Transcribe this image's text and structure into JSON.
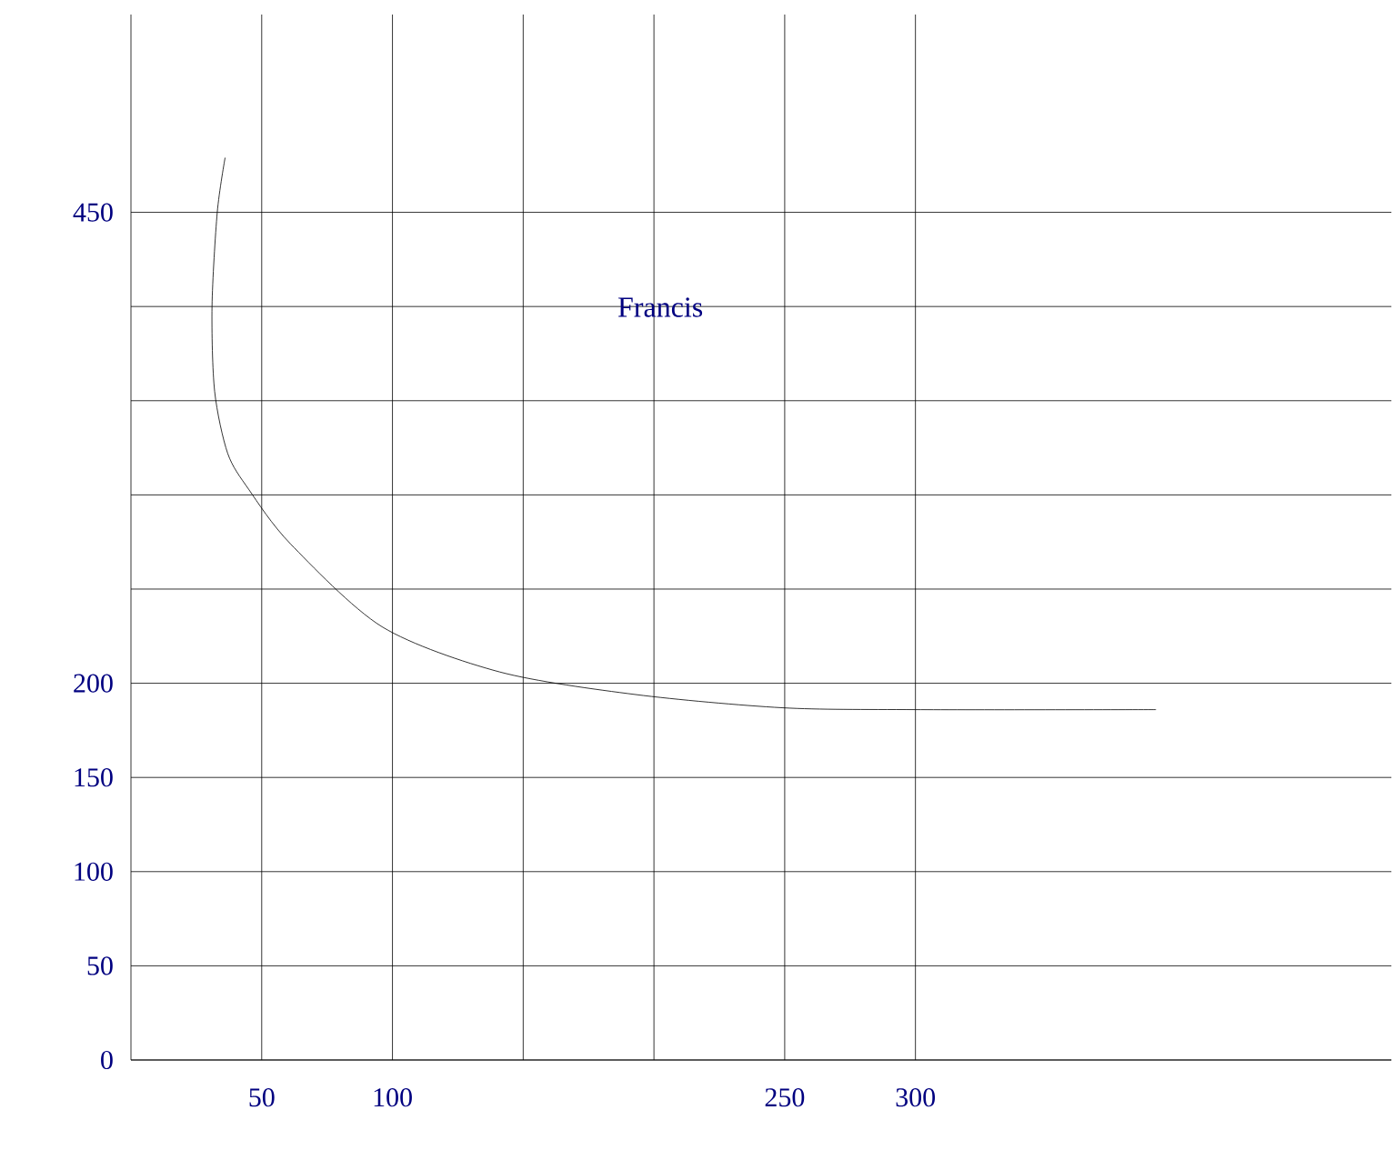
{
  "chart_data": {
    "type": "line",
    "x": [
      36,
      33,
      31,
      32,
      37,
      45,
      61,
      96,
      141,
      193,
      249,
      300,
      392
    ],
    "series": [
      {
        "color": "#000000",
        "values": [
          479,
          450,
          400,
          355,
          322,
          303,
          274,
          230,
          206,
          194,
          187,
          186,
          186
        ]
      }
    ],
    "xlim": [
      0,
      482
    ],
    "ylim": [
      0,
      555
    ],
    "xticks": [
      50,
      100,
      {
        "value": 150,
        "label": null
      },
      {
        "value": 200,
        "label": null
      },
      250,
      300
    ],
    "yticks": [
      0,
      50,
      100,
      150,
      200,
      {
        "value": 250,
        "label": null
      },
      {
        "value": 300,
        "label": null
      },
      {
        "value": 350,
        "label": null
      },
      {
        "value": 400,
        "label": null
      },
      450
    ],
    "grid": true,
    "marker": "none",
    "line_style": "solid",
    "annotations": [
      "Francis"
    ]
  }
}
